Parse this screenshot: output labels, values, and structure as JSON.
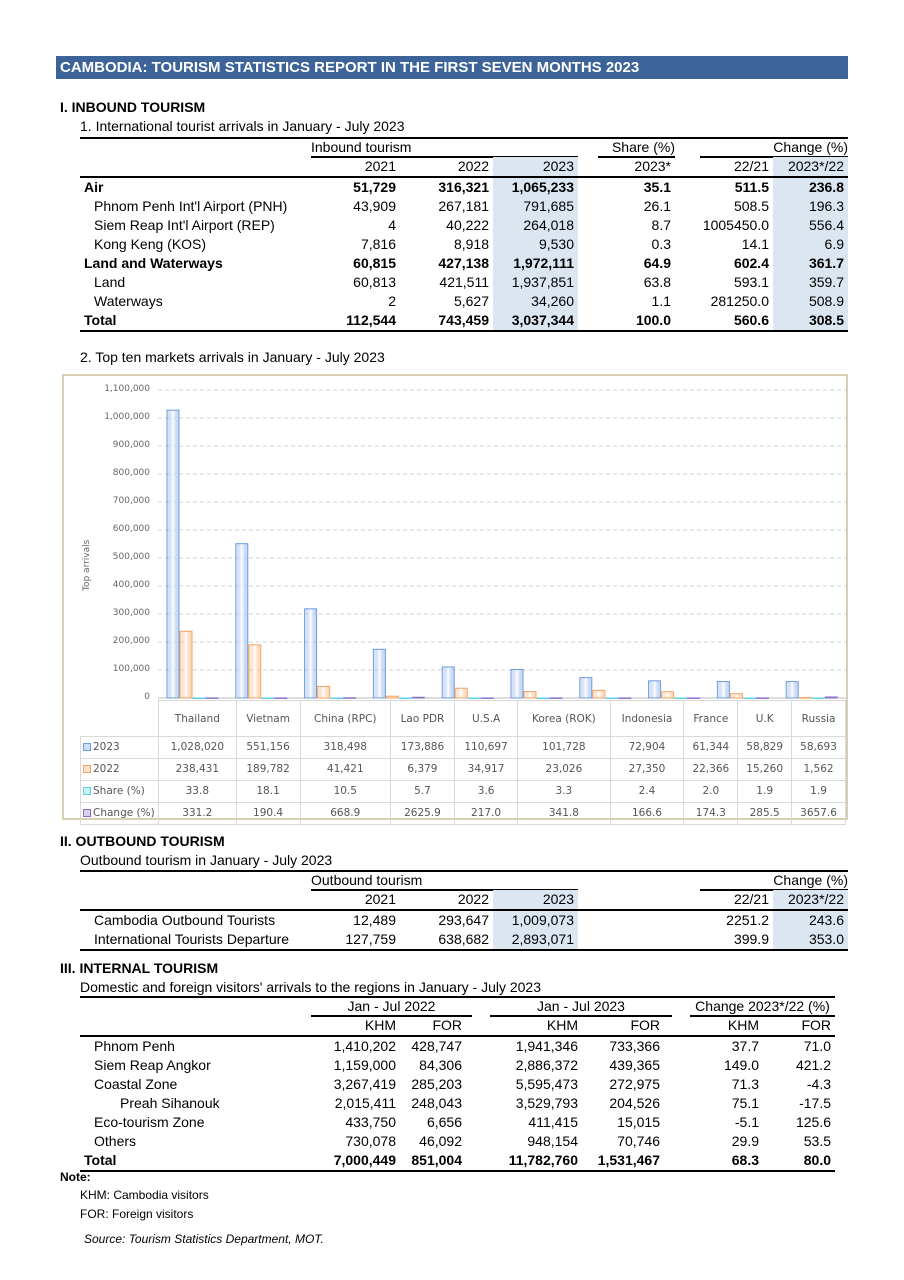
{
  "title": "CAMBODIA: TOURISM STATISTICS REPORT IN THE FIRST SEVEN MONTHS 2023",
  "inbound": {
    "section": "I.  INBOUND TOURISM",
    "subtitle": "1. International tourist arrivals in January - July 2023",
    "group_labels": {
      "inbound": "Inbound tourism",
      "share": "Share (%)",
      "change": "Change (%)"
    },
    "columns": [
      "",
      "2021",
      "2022",
      "2023",
      "2023*",
      "22/21",
      "2023*/22"
    ],
    "rows": [
      {
        "label": "Air",
        "bold": true,
        "indent": 0,
        "values": [
          "51,729",
          "316,321",
          "1,065,233",
          "35.1",
          "511.5",
          "236.8"
        ]
      },
      {
        "label": "Phnom Penh Int'l Airport (PNH)",
        "bold": false,
        "indent": 1,
        "values": [
          "43,909",
          "267,181",
          "791,685",
          "26.1",
          "508.5",
          "196.3"
        ]
      },
      {
        "label": "Siem Reap Int'l Airport (REP)",
        "bold": false,
        "indent": 1,
        "values": [
          "4",
          "40,222",
          "264,018",
          "8.7",
          "1005450.0",
          "556.4"
        ]
      },
      {
        "label": "Kong Keng (KOS)",
        "bold": false,
        "indent": 1,
        "values": [
          "7,816",
          "8,918",
          "9,530",
          "0.3",
          "14.1",
          "6.9"
        ]
      },
      {
        "label": "Land and Waterways",
        "bold": true,
        "indent": 0,
        "values": [
          "60,815",
          "427,138",
          "1,972,111",
          "64.9",
          "602.4",
          "361.7"
        ]
      },
      {
        "label": "Land",
        "bold": false,
        "indent": 1,
        "values": [
          "60,813",
          "421,511",
          "1,937,851",
          "63.8",
          "593.1",
          "359.7"
        ]
      },
      {
        "label": "Waterways",
        "bold": false,
        "indent": 1,
        "values": [
          "2",
          "5,627",
          "34,260",
          "1.1",
          "281250.0",
          "508.9"
        ]
      },
      {
        "label": "Total",
        "bold": true,
        "indent": 0,
        "values": [
          "112,544",
          "743,459",
          "3,037,344",
          "100.0",
          "560.6",
          "308.5"
        ]
      }
    ]
  },
  "markets_subtitle": "2. Top ten markets arrivals in January - July  2023",
  "chart_data": {
    "type": "bar",
    "ylabel": "Top arrivals",
    "ylim": [
      0,
      1100000
    ],
    "yticks": [
      "0",
      "100,000",
      "200,000",
      "300,000",
      "400,000",
      "500,000",
      "600,000",
      "700,000",
      "800,000",
      "900,000",
      "1,000,000",
      "1,100,000"
    ],
    "grid": true,
    "categories": [
      "Thailand",
      "Vietnam",
      "China (RPC)",
      "Lao PDR",
      "U.S.A",
      "Korea (ROK)",
      "Indonesia",
      "France",
      "U.K",
      "Russia"
    ],
    "series": [
      {
        "name": "2023",
        "color": "#6f9be0",
        "values": [
          1028020,
          551156,
          318498,
          173886,
          110697,
          101728,
          72904,
          61344,
          58829,
          58693
        ],
        "labels": [
          "1,028,020",
          "551,156",
          "318,498",
          "173,886",
          "110,697",
          "101,728",
          "72,904",
          "61,344",
          "58,829",
          "58,693"
        ]
      },
      {
        "name": "2022",
        "color": "#f5a362",
        "values": [
          238431,
          189782,
          41421,
          6379,
          34917,
          23026,
          27350,
          22366,
          15260,
          1562
        ],
        "labels": [
          "238,431",
          "189,782",
          "41,421",
          "6,379",
          "34,917",
          "23,026",
          "27,350",
          "22,366",
          "15,260",
          "1,562"
        ]
      },
      {
        "name": "Share (%)",
        "color": "#5fd0e6",
        "values": [
          33.8,
          18.1,
          10.5,
          5.7,
          3.6,
          3.3,
          2.4,
          2.0,
          1.9,
          1.9
        ],
        "labels": [
          "33.8",
          "18.1",
          "10.5",
          "5.7",
          "3.6",
          "3.3",
          "2.4",
          "2.0",
          "1.9",
          "1.9"
        ]
      },
      {
        "name": "Change (%)",
        "color": "#8a6fc6",
        "values": [
          331.2,
          190.4,
          668.9,
          2625.9,
          217.0,
          341.8,
          166.6,
          174.3,
          285.5,
          3657.6
        ],
        "labels": [
          "331.2",
          "190.4",
          "668.9",
          "2625.9",
          "217.0",
          "341.8",
          "166.6",
          "174.3",
          "285.5",
          "3657.6"
        ]
      }
    ],
    "legend": "data-table"
  },
  "outbound": {
    "section": "II.  OUTBOUND TOURISM",
    "subtitle": "Outbound tourism in January - July 2023",
    "group_labels": {
      "outbound": "Outbound tourism",
      "change": "Change (%)"
    },
    "columns": [
      "",
      "2021",
      "2022",
      "2023",
      "22/21",
      "2023*/22"
    ],
    "rows": [
      {
        "label": "Cambodia Outbound Tourists",
        "values": [
          "12,489",
          "293,647",
          "1,009,073",
          "2251.2",
          "243.6"
        ]
      },
      {
        "label": "International Tourists Departure",
        "values": [
          "127,759",
          "638,682",
          "2,893,071",
          "399.9",
          "353.0"
        ]
      }
    ]
  },
  "internal": {
    "section": "III.  INTERNAL TOURISM",
    "subtitle": "Domestic and foreign visitors' arrivals to the regions in January - July 2023",
    "group_labels": [
      "Jan - Jul 2022",
      "Jan - Jul 2023",
      "Change 2023*/22 (%)"
    ],
    "columns": [
      "KHM",
      "FOR",
      "KHM",
      "FOR",
      "KHM",
      "FOR"
    ],
    "rows": [
      {
        "label": "Phnom Penh",
        "bold": false,
        "indent": 1,
        "values": [
          "1,410,202",
          "428,747",
          "1,941,346",
          "733,366",
          "37.7",
          "71.0"
        ]
      },
      {
        "label": "Siem Reap Angkor",
        "bold": false,
        "indent": 1,
        "values": [
          "1,159,000",
          "84,306",
          "2,886,372",
          "439,365",
          "149.0",
          "421.2"
        ]
      },
      {
        "label": "Coastal Zone",
        "bold": false,
        "indent": 1,
        "values": [
          "3,267,419",
          "285,203",
          "5,595,473",
          "272,975",
          "71.3",
          "-4.3"
        ]
      },
      {
        "label": "Preah Sihanouk",
        "bold": false,
        "indent": 2,
        "values": [
          "2,015,411",
          "248,043",
          "3,529,793",
          "204,526",
          "75.1",
          "-17.5"
        ]
      },
      {
        "label": "Eco-tourism Zone",
        "bold": false,
        "indent": 1,
        "values": [
          "433,750",
          "6,656",
          "411,415",
          "15,015",
          "-5.1",
          "125.6"
        ]
      },
      {
        "label": "Others",
        "bold": false,
        "indent": 1,
        "values": [
          "730,078",
          "46,092",
          "948,154",
          "70,746",
          "29.9",
          "53.5"
        ]
      },
      {
        "label": "Total",
        "bold": true,
        "indent": 0,
        "values": [
          "7,000,449",
          "851,004",
          "11,782,760",
          "1,531,467",
          "68.3",
          "80.0"
        ]
      }
    ]
  },
  "notes": {
    "title": "Note:",
    "items": [
      "KHM: Cambodia visitors",
      "FOR: Foreign visitors"
    ],
    "source": "Source: Tourism Statistics Department, MOT."
  }
}
